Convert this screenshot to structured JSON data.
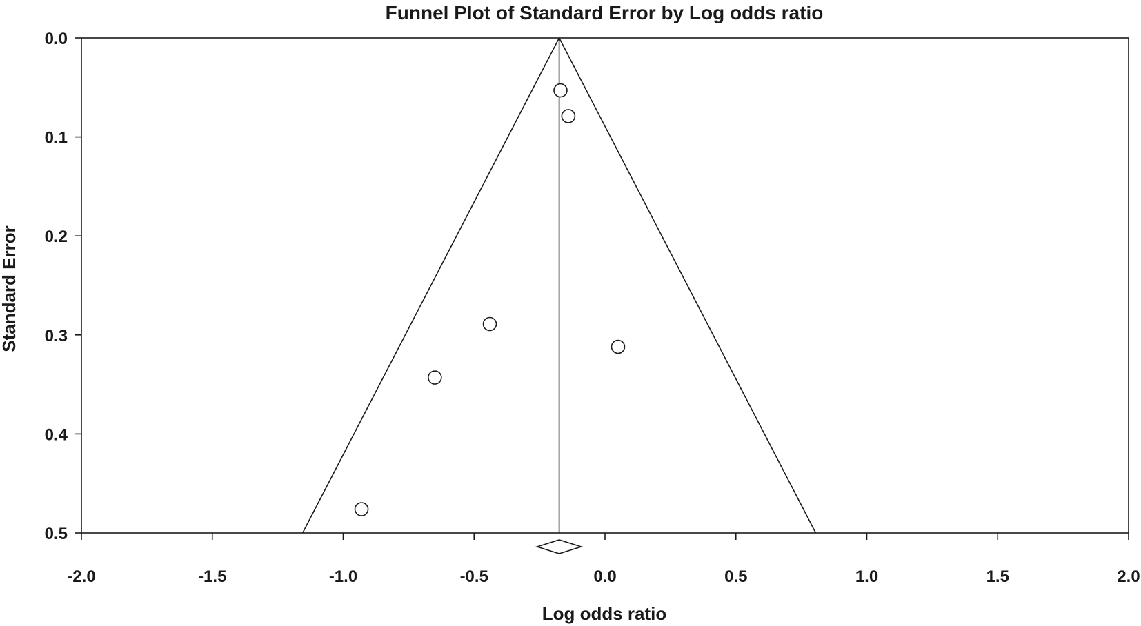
{
  "chart_data": {
    "type": "scatter",
    "title": "Funnel Plot of Standard Error by Log odds ratio",
    "xlabel": "Log odds ratio",
    "ylabel": "Standard Error",
    "xlim": [
      -2.0,
      2.0
    ],
    "ylim": [
      0.0,
      0.5
    ],
    "y_inverted": true,
    "grid": false,
    "x_ticks": [
      "-2.0",
      "-1.5",
      "-1.0",
      "-0.5",
      "0.0",
      "0.5",
      "1.0",
      "1.5",
      "2.0"
    ],
    "y_ticks": [
      "0.0",
      "0.1",
      "0.2",
      "0.3",
      "0.4",
      "0.5"
    ],
    "pooled_estimate": -0.175,
    "funnel": {
      "apex": [
        -0.175,
        0.0
      ],
      "base_left": [
        -1.155,
        0.5
      ],
      "base_right": [
        0.805,
        0.5
      ]
    },
    "points": [
      {
        "x": -0.17,
        "y": 0.053
      },
      {
        "x": -0.14,
        "y": 0.079
      },
      {
        "x": -0.44,
        "y": 0.289
      },
      {
        "x": 0.05,
        "y": 0.312
      },
      {
        "x": -0.65,
        "y": 0.343
      },
      {
        "x": -0.93,
        "y": 0.476
      }
    ]
  }
}
